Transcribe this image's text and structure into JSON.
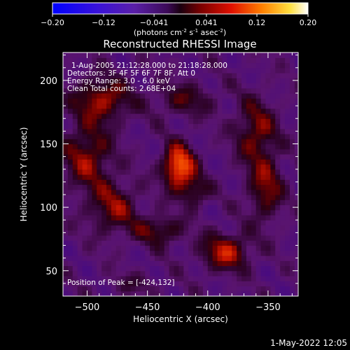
{
  "colorbar": {
    "tick_labels": [
      "-0.20",
      "-0.12",
      "-0.041",
      "0.041",
      "0.12",
      "0.20"
    ],
    "range": [
      -0.2,
      0.2
    ],
    "units_label": "(photons cm",
    "units_exp1": "-2",
    "units_mid": " s",
    "units_exp2": "-1",
    "units_tail": " asec",
    "units_exp3": "-2",
    "units_close": ")"
  },
  "chart_data": {
    "type": "heatmap",
    "title": "Reconstructed RHESSI Image",
    "xlabel": "Heliocentric X (arcsec)",
    "ylabel": "Heliocentric Y (arcsec)",
    "xlim": [
      -520,
      -325
    ],
    "ylim": [
      30,
      222
    ],
    "x_ticks": [
      -500,
      -450,
      -400,
      -350
    ],
    "y_ticks": [
      50,
      100,
      150,
      200
    ],
    "x_tick_labels": [
      "−500",
      "−450",
      "−400",
      "−350"
    ],
    "y_tick_labels": [
      "50",
      "100",
      "150",
      "200"
    ],
    "colormap": "purple-red-yellow",
    "peak": [
      -424,
      132
    ],
    "sources": [
      {
        "x": -424,
        "y": 132,
        "sx": 9,
        "sy": 12,
        "amp": 0.2
      },
      {
        "x": -488,
        "y": 185,
        "sx": 16,
        "sy": 12,
        "amp": 0.12
      },
      {
        "x": -500,
        "y": 140,
        "sx": 14,
        "sy": 18,
        "amp": 0.11
      },
      {
        "x": -478,
        "y": 100,
        "sx": 14,
        "sy": 14,
        "amp": 0.1
      },
      {
        "x": -440,
        "y": 82,
        "sx": 14,
        "sy": 8,
        "amp": 0.09
      },
      {
        "x": -360,
        "y": 160,
        "sx": 12,
        "sy": 18,
        "amp": 0.1
      },
      {
        "x": -352,
        "y": 115,
        "sx": 10,
        "sy": 18,
        "amp": 0.1
      },
      {
        "x": -385,
        "y": 65,
        "sx": 14,
        "sy": 10,
        "amp": 0.13
      },
      {
        "x": -420,
        "y": 185,
        "sx": 18,
        "sy": 9,
        "amp": 0.07
      },
      {
        "x": -460,
        "y": 40,
        "sx": 14,
        "sy": 6,
        "amp": 0.04
      },
      {
        "x": -410,
        "y": 112,
        "sx": 8,
        "sy": 8,
        "amp": 0.08
      }
    ],
    "annotations": [
      "1-Aug-2005 21:12:28.000 to 21:18:28.000",
      "Detectors: 3F 4F 5F 6F 7F 8F, Att 0",
      "Energy Range: 3.0 - 6.0 keV",
      "Clean    Total counts: 2.68E+04"
    ],
    "peak_label": "Position of Peak = [-424,132]"
  },
  "timestamp": "1-May-2022 12:05"
}
